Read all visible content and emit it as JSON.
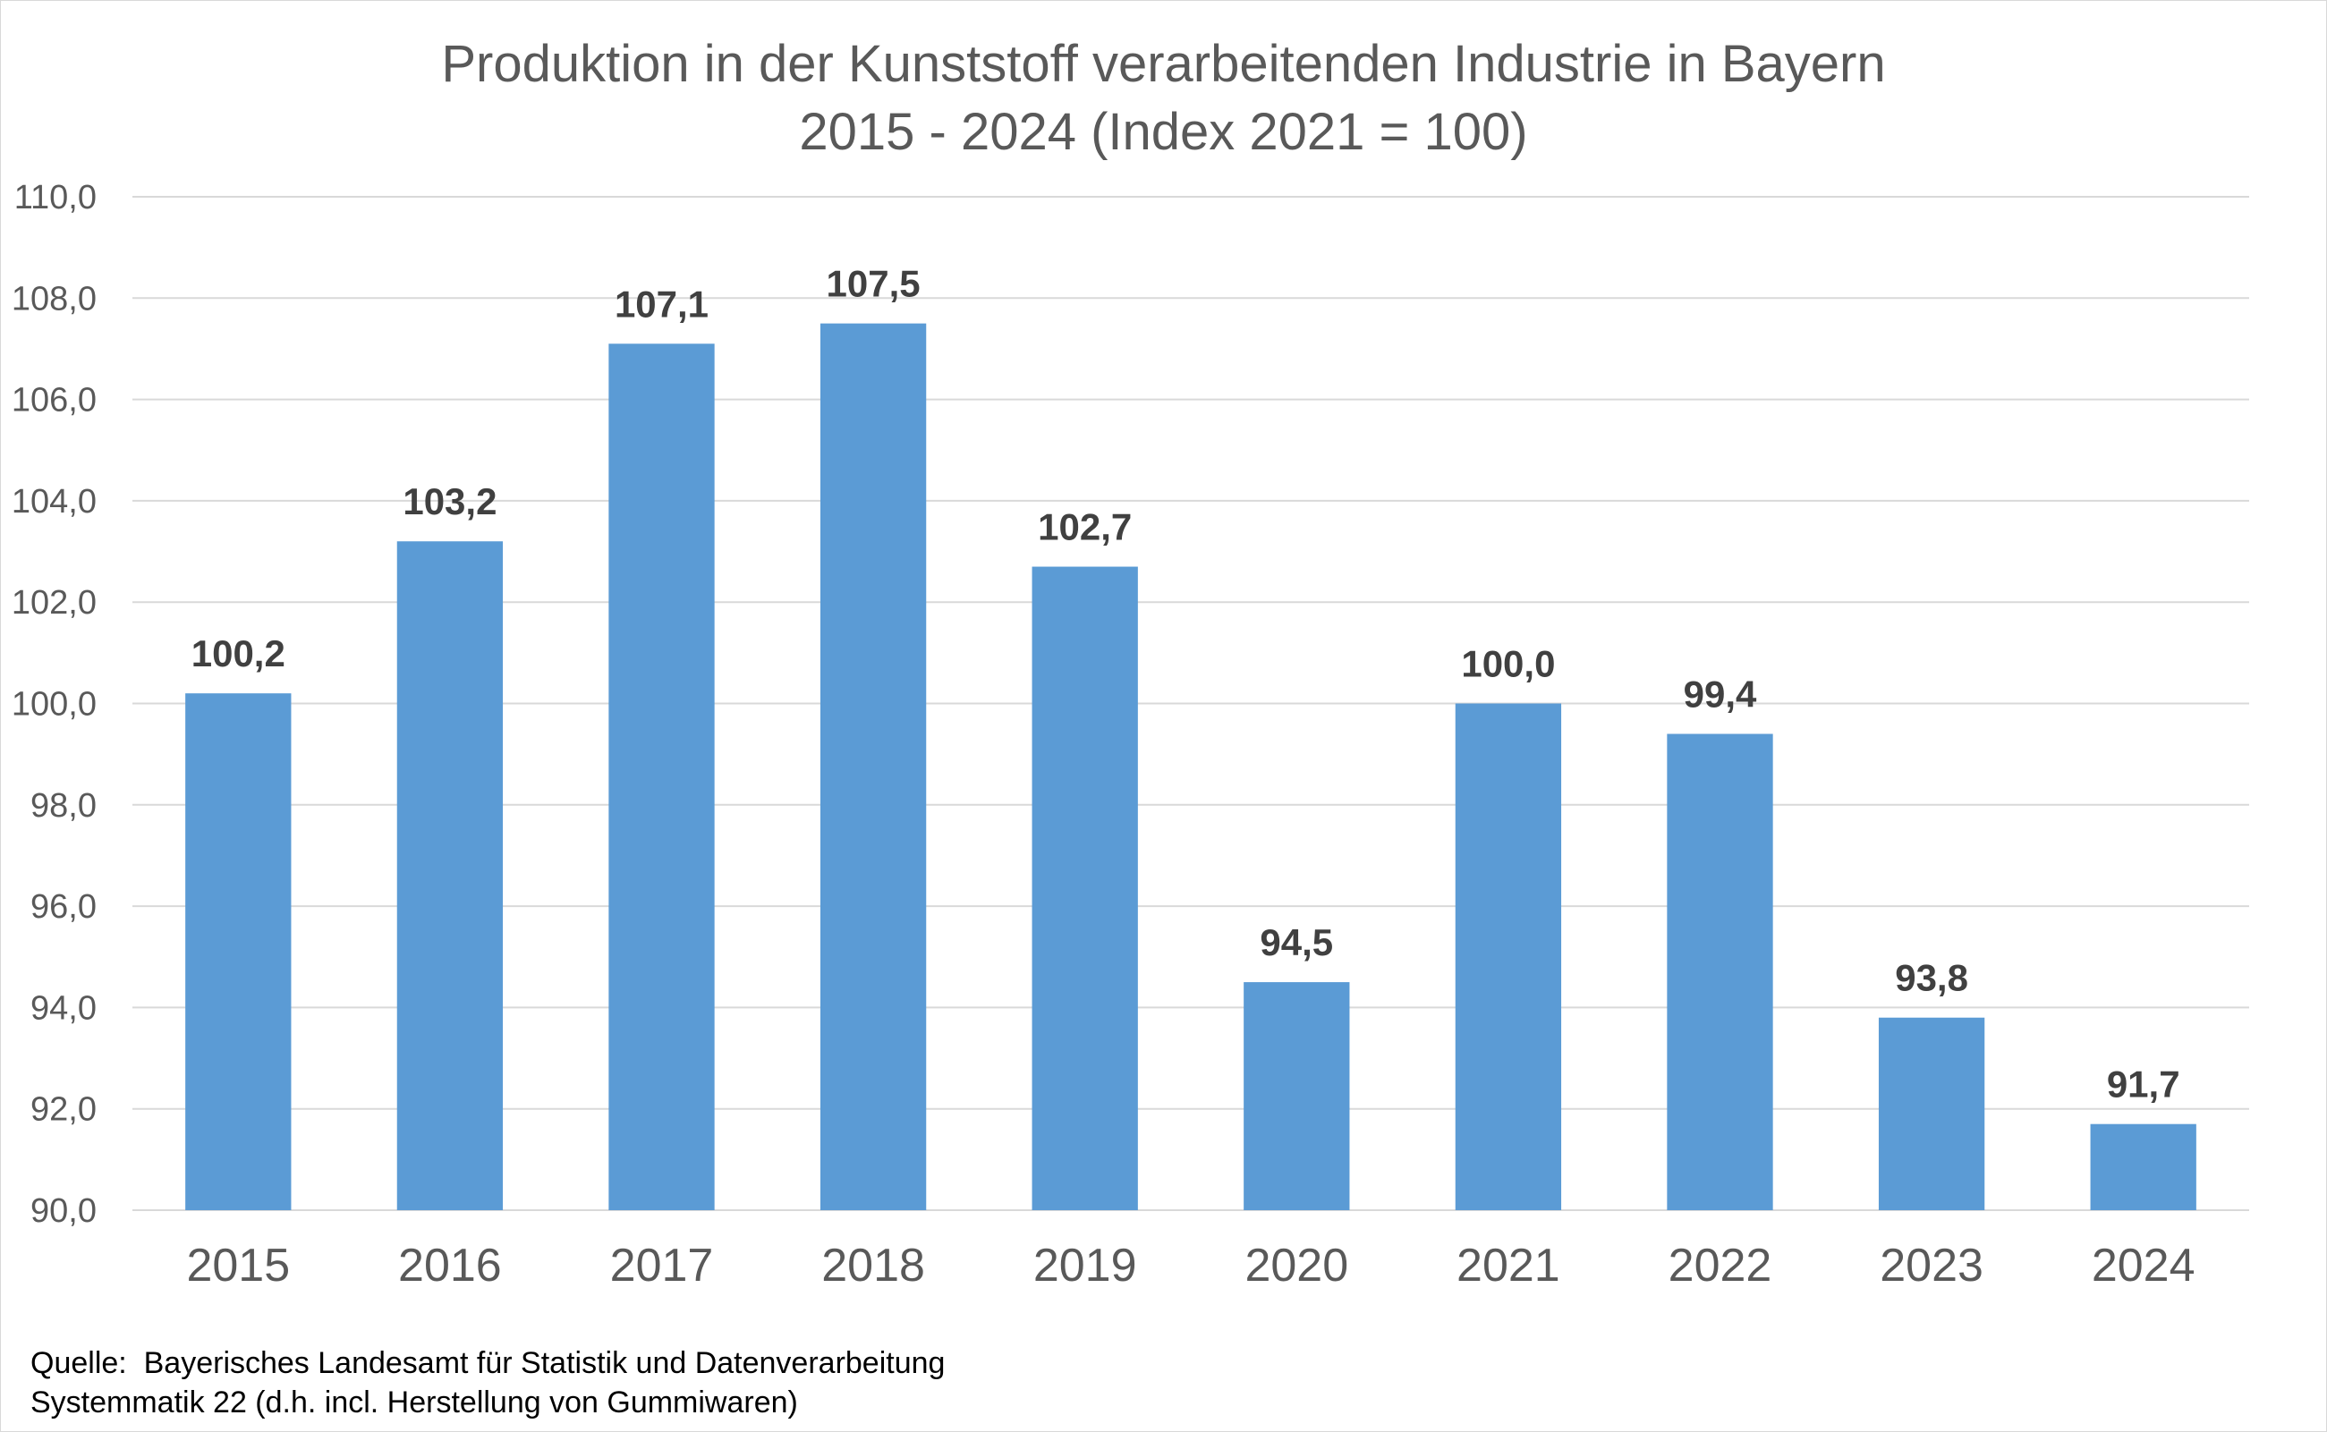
{
  "chart_data": {
    "type": "bar",
    "title": "Produktion in der Kunststoff verarbeitenden Industrie in Bayern",
    "subtitle": "2015 - 2024 (Index 2021 = 100)",
    "xlabel": "",
    "ylabel": "",
    "categories": [
      "2015",
      "2016",
      "2017",
      "2018",
      "2019",
      "2020",
      "2021",
      "2022",
      "2023",
      "2024"
    ],
    "values": [
      100.2,
      103.2,
      107.1,
      107.5,
      102.7,
      94.5,
      100.0,
      99.4,
      93.8,
      91.7
    ],
    "value_labels": [
      "100,2",
      "103,2",
      "107,1",
      "107,5",
      "102,7",
      "94,5",
      "100,0",
      "99,4",
      "93,8",
      "91,7"
    ],
    "ylim": [
      90,
      110
    ],
    "yticks": [
      90,
      92,
      94,
      96,
      98,
      100,
      102,
      104,
      106,
      108,
      110
    ],
    "ytick_labels": [
      "90,0",
      "92,0",
      "94,0",
      "96,0",
      "98,0",
      "100,0",
      "102,0",
      "104,0",
      "106,0",
      "108,0",
      "110,0"
    ],
    "grid": true,
    "legend": "none",
    "bar_color": "#5b9bd5",
    "grid_color": "#d9d9d9",
    "text_color": "#595959"
  },
  "source": {
    "line1": "Quelle:  Bayerisches Landesamt für Statistik und Datenverarbeitung",
    "line2": "Systemmatik 22 (d.h. incl. Herstellung von Gummiwaren)"
  }
}
